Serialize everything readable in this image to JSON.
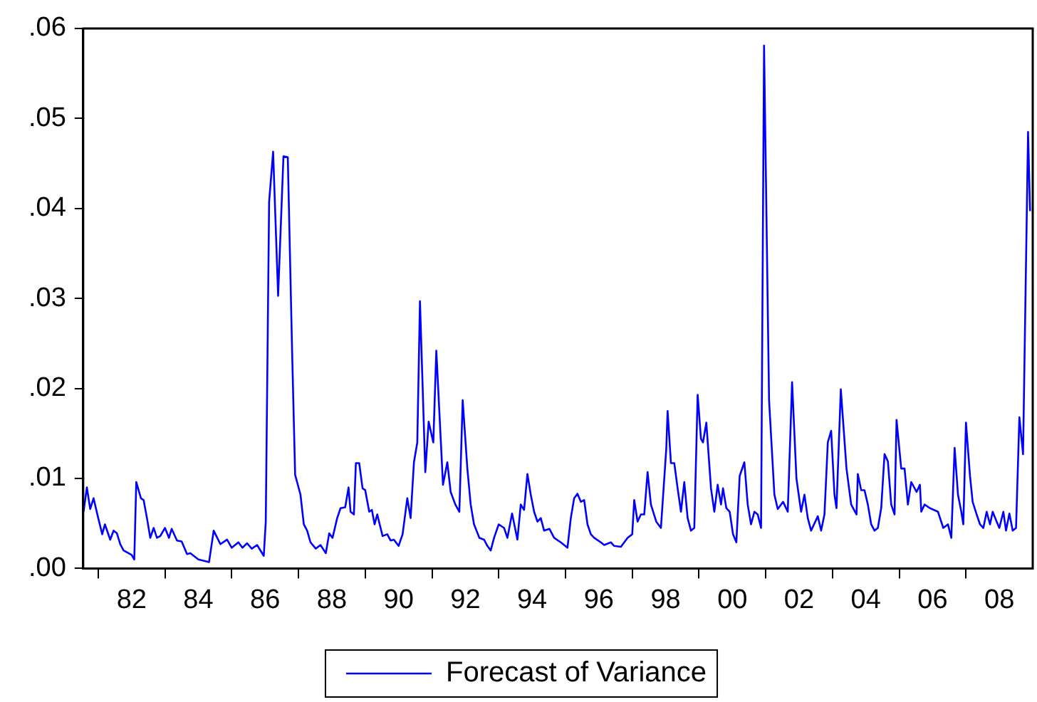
{
  "chart_data": {
    "type": "line",
    "xlim": [
      1980.55,
      2009.0
    ],
    "ylim": [
      0,
      0.06
    ],
    "yticks": [
      {
        "value": 0,
        "label": ".00"
      },
      {
        "value": 0.01,
        "label": ".01"
      },
      {
        "value": 0.02,
        "label": ".02"
      },
      {
        "value": 0.03,
        "label": ".03"
      },
      {
        "value": 0.04,
        "label": ".04"
      },
      {
        "value": 0.05,
        "label": ".05"
      },
      {
        "value": 0.06,
        "label": ".06"
      }
    ],
    "xticks": [
      {
        "value": 1981,
        "label": null
      },
      {
        "value": 1982,
        "label": "82"
      },
      {
        "value": 1983,
        "label": null
      },
      {
        "value": 1984,
        "label": "84"
      },
      {
        "value": 1985,
        "label": null
      },
      {
        "value": 1986,
        "label": "86"
      },
      {
        "value": 1987,
        "label": null
      },
      {
        "value": 1988,
        "label": "88"
      },
      {
        "value": 1989,
        "label": null
      },
      {
        "value": 1990,
        "label": "90"
      },
      {
        "value": 1991,
        "label": null
      },
      {
        "value": 1992,
        "label": "92"
      },
      {
        "value": 1993,
        "label": null
      },
      {
        "value": 1994,
        "label": "94"
      },
      {
        "value": 1995,
        "label": null
      },
      {
        "value": 1996,
        "label": "96"
      },
      {
        "value": 1997,
        "label": null
      },
      {
        "value": 1998,
        "label": "98"
      },
      {
        "value": 1999,
        "label": null
      },
      {
        "value": 2000,
        "label": "00"
      },
      {
        "value": 2001,
        "label": null
      },
      {
        "value": 2002,
        "label": "02"
      },
      {
        "value": 2003,
        "label": null
      },
      {
        "value": 2004,
        "label": "04"
      },
      {
        "value": 2005,
        "label": null
      },
      {
        "value": 2006,
        "label": "06"
      },
      {
        "value": 2007,
        "label": null
      },
      {
        "value": 2008,
        "label": "08"
      }
    ],
    "grid": false,
    "legend": "bottom",
    "marker": "none",
    "line_style": "solid",
    "series": [
      {
        "name": "Forecast of Variance",
        "color": "#0000ff",
        "x": [
          1980.56,
          1980.66,
          1980.76,
          1980.86,
          1981.0,
          1981.12,
          1981.2,
          1981.36,
          1981.46,
          1981.56,
          1981.66,
          1981.76,
          1982.0,
          1982.08,
          1982.14,
          1982.28,
          1982.36,
          1982.46,
          1982.56,
          1982.66,
          1982.76,
          1982.86,
          1983.0,
          1983.12,
          1983.2,
          1983.36,
          1983.5,
          1983.66,
          1983.76,
          1984.0,
          1984.32,
          1984.46,
          1984.66,
          1984.86,
          1985.0,
          1985.2,
          1985.32,
          1985.46,
          1985.6,
          1985.76,
          1985.96,
          1986.02,
          1986.12,
          1986.24,
          1986.39,
          1986.55,
          1986.68,
          1986.81,
          1986.9,
          1987.06,
          1987.16,
          1987.26,
          1987.36,
          1987.52,
          1987.66,
          1987.82,
          1987.92,
          1988.02,
          1988.16,
          1988.26,
          1988.4,
          1988.5,
          1988.56,
          1988.66,
          1988.72,
          1988.82,
          1988.92,
          1989.0,
          1989.12,
          1989.2,
          1989.28,
          1989.36,
          1989.52,
          1989.66,
          1989.76,
          1989.86,
          1990.0,
          1990.12,
          1990.26,
          1990.36,
          1990.46,
          1990.56,
          1990.64,
          1990.8,
          1990.9,
          1991.04,
          1991.13,
          1991.33,
          1991.46,
          1991.56,
          1991.7,
          1991.82,
          1991.92,
          1992.06,
          1992.16,
          1992.26,
          1992.42,
          1992.56,
          1992.66,
          1992.76,
          1992.86,
          1993.0,
          1993.16,
          1993.26,
          1993.4,
          1993.56,
          1993.66,
          1993.76,
          1993.86,
          1993.96,
          1994.06,
          1994.16,
          1994.26,
          1994.36,
          1994.52,
          1994.66,
          1994.86,
          1995.06,
          1995.16,
          1995.26,
          1995.36,
          1995.46,
          1995.56,
          1995.66,
          1995.76,
          1995.86,
          1996.06,
          1996.16,
          1996.36,
          1996.46,
          1996.66,
          1996.86,
          1997.0,
          1997.06,
          1997.16,
          1997.26,
          1997.36,
          1997.46,
          1997.56,
          1997.72,
          1997.86,
          1998.02,
          1998.06,
          1998.16,
          1998.26,
          1998.36,
          1998.46,
          1998.56,
          1998.66,
          1998.76,
          1998.86,
          1998.96,
          1999.06,
          1999.12,
          1999.22,
          1999.36,
          1999.46,
          1999.56,
          1999.66,
          1999.72,
          1999.82,
          1999.92,
          2000.02,
          2000.12,
          2000.22,
          2000.36,
          2000.46,
          2000.56,
          2000.66,
          2000.76,
          2000.86,
          2000.95,
          2001.1,
          2001.26,
          2001.36,
          2001.52,
          2001.66,
          2001.79,
          2001.92,
          2002.06,
          2002.16,
          2002.26,
          2002.36,
          2002.56,
          2002.66,
          2002.76,
          2002.86,
          2002.96,
          2003.06,
          2003.12,
          2003.25,
          2003.42,
          2003.56,
          2003.72,
          2003.76,
          2003.86,
          2003.96,
          2004.06,
          2004.16,
          2004.26,
          2004.36,
          2004.46,
          2004.56,
          2004.66,
          2004.76,
          2004.86,
          2004.92,
          2005.06,
          2005.16,
          2005.26,
          2005.36,
          2005.52,
          2005.62,
          2005.66,
          2005.76,
          2005.92,
          2006.16,
          2006.32,
          2006.46,
          2006.56,
          2006.66,
          2006.76,
          2006.86,
          2006.92,
          2007.0,
          2007.12,
          2007.2,
          2007.32,
          2007.42,
          2007.52,
          2007.62,
          2007.72,
          2007.8,
          2007.92,
          2008.0,
          2008.12,
          2008.2,
          2008.3,
          2008.4,
          2008.5,
          2008.6,
          2008.71,
          2008.86,
          2008.92
        ],
        "values": [
          0.0063,
          0.009,
          0.0066,
          0.0078,
          0.0056,
          0.0038,
          0.0049,
          0.0032,
          0.0042,
          0.0039,
          0.0027,
          0.002,
          0.0015,
          0.001,
          0.0096,
          0.0078,
          0.0076,
          0.0056,
          0.0034,
          0.0045,
          0.0034,
          0.0036,
          0.0045,
          0.0034,
          0.0044,
          0.0031,
          0.003,
          0.0016,
          0.0017,
          0.001,
          0.0007,
          0.0042,
          0.0027,
          0.0032,
          0.0023,
          0.0029,
          0.0023,
          0.0028,
          0.0022,
          0.0026,
          0.0014,
          0.0052,
          0.0407,
          0.0463,
          0.0303,
          0.0458,
          0.0457,
          0.024,
          0.0104,
          0.0082,
          0.0049,
          0.0042,
          0.0029,
          0.0022,
          0.0026,
          0.0017,
          0.0039,
          0.0034,
          0.0056,
          0.0067,
          0.0068,
          0.009,
          0.0063,
          0.006,
          0.0117,
          0.0117,
          0.0089,
          0.0087,
          0.0063,
          0.0065,
          0.0049,
          0.006,
          0.0036,
          0.0038,
          0.0031,
          0.0032,
          0.0025,
          0.0038,
          0.0078,
          0.0056,
          0.0118,
          0.014,
          0.0297,
          0.0107,
          0.0163,
          0.014,
          0.0242,
          0.0093,
          0.0118,
          0.0085,
          0.0071,
          0.0063,
          0.0187,
          0.0111,
          0.0071,
          0.0049,
          0.0034,
          0.0032,
          0.0025,
          0.002,
          0.0034,
          0.0049,
          0.0045,
          0.0034,
          0.0061,
          0.0032,
          0.0071,
          0.0065,
          0.0105,
          0.0082,
          0.0063,
          0.0052,
          0.0056,
          0.0042,
          0.0044,
          0.0034,
          0.0029,
          0.0023,
          0.0056,
          0.0078,
          0.0083,
          0.0074,
          0.0076,
          0.0049,
          0.0038,
          0.0034,
          0.0029,
          0.0026,
          0.0029,
          0.0025,
          0.0024,
          0.0034,
          0.0038,
          0.0076,
          0.0052,
          0.006,
          0.006,
          0.0107,
          0.0071,
          0.0052,
          0.0045,
          0.0133,
          0.0175,
          0.0117,
          0.0117,
          0.0089,
          0.0063,
          0.0096,
          0.0056,
          0.0042,
          0.0045,
          0.0193,
          0.0144,
          0.014,
          0.0162,
          0.0089,
          0.0063,
          0.0093,
          0.0071,
          0.0089,
          0.0067,
          0.0063,
          0.0038,
          0.0029,
          0.0103,
          0.0118,
          0.0071,
          0.0049,
          0.0063,
          0.006,
          0.0045,
          0.0581,
          0.0187,
          0.0082,
          0.0066,
          0.0074,
          0.0063,
          0.0207,
          0.01,
          0.0063,
          0.0082,
          0.0056,
          0.0042,
          0.0058,
          0.0042,
          0.006,
          0.014,
          0.0153,
          0.0082,
          0.0067,
          0.0199,
          0.0111,
          0.0071,
          0.006,
          0.0105,
          0.0087,
          0.0087,
          0.0071,
          0.0049,
          0.0042,
          0.0045,
          0.0067,
          0.0127,
          0.0119,
          0.0071,
          0.006,
          0.0165,
          0.0111,
          0.0111,
          0.0071,
          0.0096,
          0.0085,
          0.0093,
          0.0063,
          0.0071,
          0.0067,
          0.0063,
          0.0045,
          0.0049,
          0.0034,
          0.0134,
          0.0082,
          0.0063,
          0.0049,
          0.0162,
          0.0103,
          0.0074,
          0.006,
          0.0049,
          0.0045,
          0.0063,
          0.0049,
          0.0063,
          0.0052,
          0.0045,
          0.0063,
          0.0042,
          0.0061,
          0.0042,
          0.0045,
          0.0168,
          0.0127,
          0.0485,
          0.0397
        ]
      }
    ]
  }
}
